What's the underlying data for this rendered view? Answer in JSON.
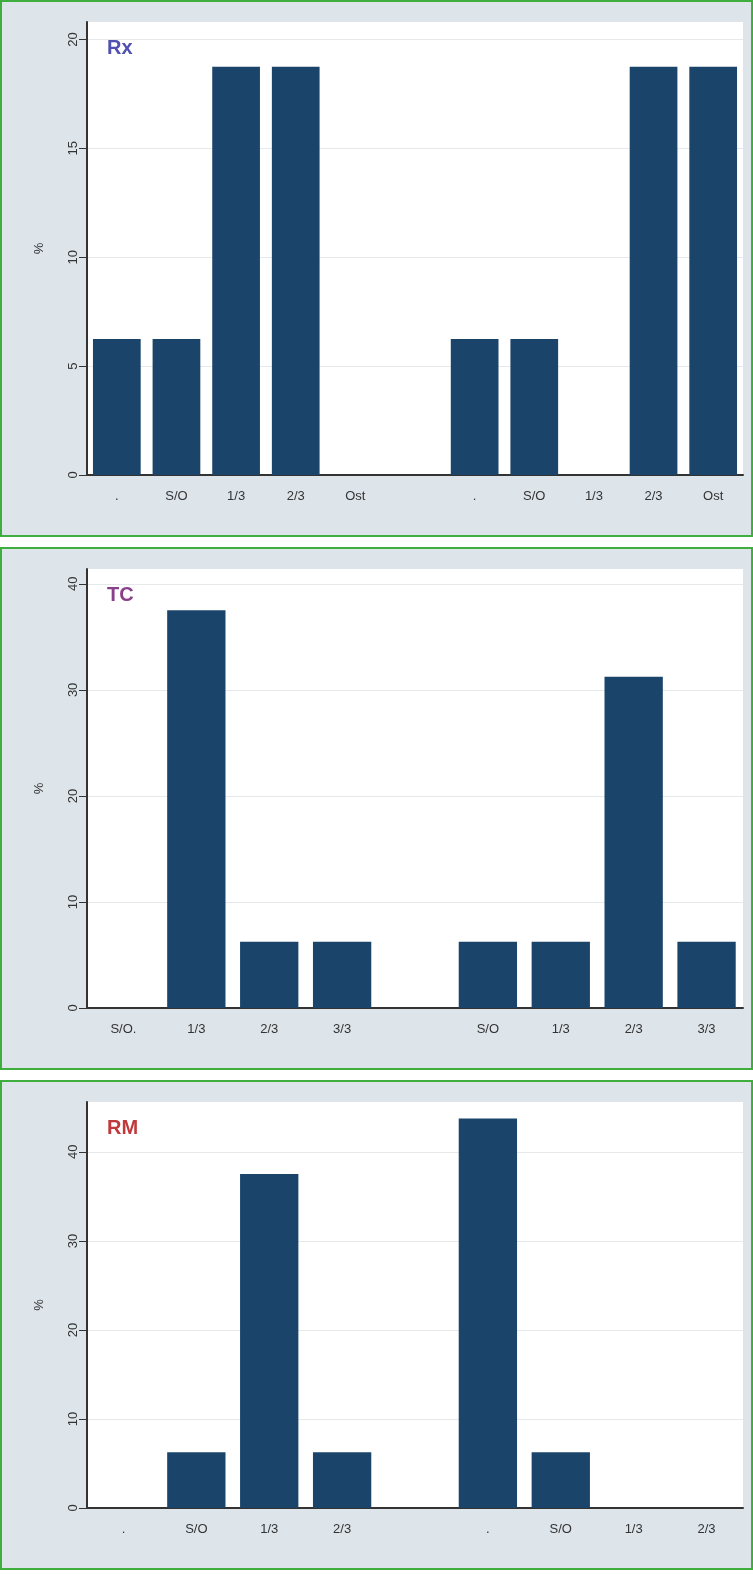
{
  "chart_data": [
    {
      "type": "bar",
      "title": "Rx",
      "ylabel": "%",
      "categories": [
        ".",
        "S/O",
        "1/3",
        "2/3",
        "Ost",
        null,
        ".",
        "S/O",
        "1/3",
        "2/3",
        "Ost"
      ],
      "values": [
        6.25,
        6.25,
        18.75,
        18.75,
        0,
        null,
        6.25,
        6.25,
        0,
        18.75,
        18.75
      ],
      "color": "#1a4469",
      "ylim": [
        0,
        20.8
      ],
      "yticks": [
        0,
        5,
        10,
        15,
        20
      ],
      "grid": "y"
    },
    {
      "type": "bar",
      "title": "TC",
      "ylabel": "%",
      "categories": [
        "S/O.",
        "1/3",
        "2/3",
        "3/3",
        null,
        "S/O",
        "1/3",
        "2/3",
        "3/3"
      ],
      "values": [
        0,
        37.5,
        6.25,
        6.25,
        null,
        6.25,
        6.25,
        31.25,
        6.25
      ],
      "color": "#1a4469",
      "ylim": [
        0,
        41.4
      ],
      "yticks": [
        0,
        10,
        20,
        30,
        40
      ],
      "grid": "y"
    },
    {
      "type": "bar",
      "title": "RM",
      "ylabel": "%",
      "categories": [
        ".",
        "S/O",
        "1/3",
        "2/3",
        null,
        ".",
        "S/O",
        "1/3",
        "2/3"
      ],
      "values": [
        0,
        6.25,
        37.5,
        6.25,
        null,
        43.75,
        6.25,
        0,
        0
      ],
      "color": "#1a4469",
      "ylim": [
        0,
        45.6
      ],
      "yticks": [
        0,
        10,
        20,
        30,
        40
      ],
      "grid": "y"
    }
  ]
}
